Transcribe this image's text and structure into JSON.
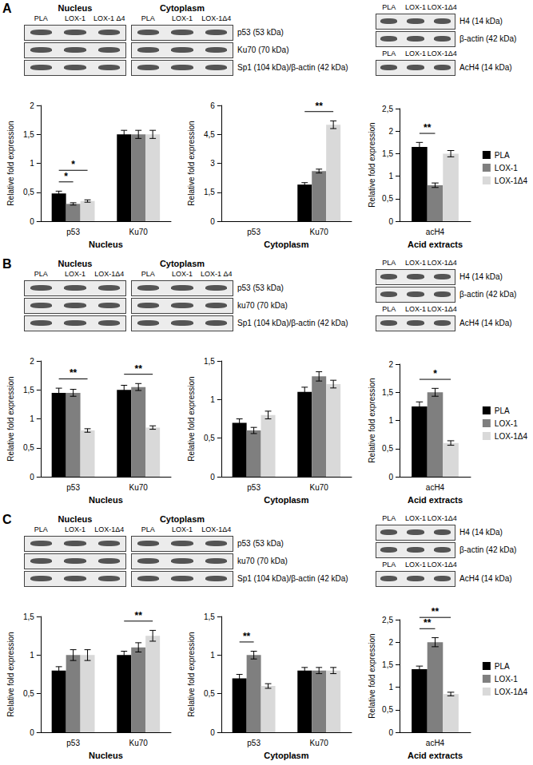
{
  "panels": [
    {
      "label": "A",
      "blots": [
        {
          "sections": [
            {
              "title": "Nucleus",
              "lanes": [
                "PLA",
                "LOX-1",
                "LOX-1 Δ4"
              ]
            },
            {
              "title": "Cytoplasm",
              "lanes": [
                "PLA",
                "LOX-1",
                "LOX-1Δ4"
              ]
            }
          ],
          "rows": [
            "p53 (53 kDa)",
            "Ku70 (70 kDa)",
            "Sp1 (104 kDa)/β-actin (42 kDa)"
          ]
        },
        {
          "sections": [
            {
              "lanes": [
                "PLA",
                "LOX-1",
                "LOX-1Δ4"
              ]
            }
          ],
          "rows": [
            "H4 (14 kDa)",
            "β-actin (42 kDa)"
          ]
        },
        {
          "sections": [
            {
              "lanes": [
                "PLA",
                "LOX-1",
                "LOX-1Δ4"
              ]
            }
          ],
          "rows": [
            "AcH4 (14 kDa)"
          ]
        }
      ]
    },
    {
      "label": "B",
      "blots": [
        {
          "sections": [
            {
              "title": "Nucleus",
              "lanes": [
                "PLA",
                "LOX-1",
                "LOX-1Δ4"
              ]
            },
            {
              "title": "Cytoplasm",
              "lanes": [
                "PLA",
                "LOX-1",
                "LOX-1 Δ4"
              ]
            }
          ],
          "rows": [
            "p53 (53 kDa)",
            "ku70 (70 kDa)",
            "Sp1 (104 kDa)/β-actin (42 kDa)"
          ]
        },
        {
          "sections": [
            {
              "lanes": [
                "PLA",
                "LOX-1",
                "LOX-1Δ4"
              ]
            }
          ],
          "rows": [
            "H4 (14 kDa)",
            "β-actin (42 kDa)"
          ]
        },
        {
          "sections": [
            {
              "lanes": [
                "PLA",
                "LOX-1",
                "LOX-1Δ4"
              ]
            }
          ],
          "rows": [
            "AcH4 (14 kDa)"
          ]
        }
      ]
    },
    {
      "label": "C",
      "blots": [
        {
          "sections": [
            {
              "title": "Nucleus",
              "lanes": [
                "PLA",
                "LOX-1",
                "LOX-1Δ4"
              ]
            },
            {
              "title": "Cytoplasm",
              "lanes": [
                "PLA",
                "LOX-1",
                "LOX-1Δ4"
              ]
            }
          ],
          "rows": [
            "p53 (53 kDa)",
            "ku70 (70 kDa)",
            "Sp1 (104 kDa)/β-actin (42 kDa)"
          ]
        },
        {
          "sections": [
            {
              "lanes": [
                "PLA",
                "LOX-1",
                "LOX-1Δ4"
              ]
            }
          ],
          "rows": [
            "H4 (14 kDa)",
            "β-actin (42 kDa)"
          ]
        },
        {
          "sections": [
            {
              "lanes": [
                "PLA",
                "LOX-1",
                "LOX-1Δ4"
              ]
            }
          ],
          "rows": [
            "AcH4 (14 kDa)"
          ]
        }
      ]
    }
  ],
  "chart_data": [
    {
      "panel": "A",
      "type": "bar",
      "grid": false,
      "x_label": "Nucleus",
      "y_label": "Relative fold expression",
      "categories": [
        "p53",
        "Ku70"
      ],
      "series": [
        {
          "name": "PLA",
          "color": "#000000",
          "values": [
            0.48,
            1.5
          ],
          "errors": [
            0.04,
            0.07
          ]
        },
        {
          "name": "LOX-1",
          "color": "#7f7f7f",
          "values": [
            0.3,
            1.5
          ],
          "errors": [
            0.02,
            0.07
          ]
        },
        {
          "name": "LOX-1Δ4",
          "color": "#d9d9d9",
          "values": [
            0.35,
            1.5
          ],
          "errors": [
            0.02,
            0.07
          ]
        }
      ],
      "ylim": [
        0,
        2
      ],
      "yticks": [
        0,
        {
          "value": 0.5,
          "label": "0,5"
        },
        1,
        {
          "value": 1.5,
          "label": "1,5"
        },
        2
      ],
      "annotations": [
        {
          "text": "*",
          "category": "p53",
          "series": [
            "PLA",
            "LOX-1"
          ]
        },
        {
          "text": "*",
          "category": "p53",
          "series": [
            "PLA",
            "LOX-1Δ4"
          ]
        }
      ]
    },
    {
      "panel": "A",
      "type": "bar",
      "grid": false,
      "x_label": "Cytoplasm",
      "y_label": "Relative fold expression",
      "categories": [
        "p53",
        "Ku70"
      ],
      "series": [
        {
          "name": "PLA",
          "color": "#000000",
          "values": [
            0,
            1.9
          ],
          "errors": [
            0,
            0.1
          ]
        },
        {
          "name": "LOX-1",
          "color": "#7f7f7f",
          "values": [
            0,
            2.6
          ],
          "errors": [
            0,
            0.1
          ]
        },
        {
          "name": "LOX-1Δ4",
          "color": "#d9d9d9",
          "values": [
            0,
            5.0
          ],
          "errors": [
            0,
            0.2
          ]
        }
      ],
      "ylim": [
        0,
        6
      ],
      "yticks": [
        0,
        {
          "value": 1.5,
          "label": "1,5"
        },
        3,
        {
          "value": 4.5,
          "label": "4,5"
        },
        6
      ],
      "annotations": [
        {
          "text": "**",
          "category": "Ku70",
          "series": [
            "PLA",
            "LOX-1Δ4"
          ]
        }
      ]
    },
    {
      "panel": "A",
      "type": "bar",
      "grid": false,
      "x_label": "Acid extracts",
      "y_label": "Relative fold expression",
      "legend": "right",
      "categories": [
        "acH4"
      ],
      "series": [
        {
          "name": "PLA",
          "color": "#000000",
          "values": [
            1.65
          ],
          "errors": [
            0.1
          ]
        },
        {
          "name": "LOX-1",
          "color": "#7f7f7f",
          "values": [
            0.8
          ],
          "errors": [
            0.05
          ]
        },
        {
          "name": "LOX-1Δ4",
          "color": "#d9d9d9",
          "values": [
            1.5
          ],
          "errors": [
            0.07
          ]
        }
      ],
      "ylim": [
        0,
        2.5
      ],
      "yticks": [
        0,
        {
          "value": 0.5,
          "label": "0,5"
        },
        1,
        {
          "value": 1.5,
          "label": "1,5"
        },
        2,
        {
          "value": 2.5,
          "label": "2,5"
        }
      ],
      "annotations": [
        {
          "text": "**",
          "category": "acH4",
          "series": [
            "PLA",
            "LOX-1"
          ]
        }
      ]
    },
    {
      "panel": "B",
      "type": "bar",
      "grid": false,
      "x_label": "Nucleus",
      "y_label": "Relative fold expression",
      "categories": [
        "p53",
        "Ku70"
      ],
      "series": [
        {
          "name": "PLA",
          "color": "#000000",
          "values": [
            1.45,
            1.5
          ],
          "errors": [
            0.08,
            0.08
          ]
        },
        {
          "name": "LOX-1",
          "color": "#7f7f7f",
          "values": [
            1.45,
            1.55
          ],
          "errors": [
            0.06,
            0.06
          ]
        },
        {
          "name": "LOX-1Δ4",
          "color": "#d9d9d9",
          "values": [
            0.8,
            0.85
          ],
          "errors": [
            0.03,
            0.03
          ]
        }
      ],
      "ylim": [
        0,
        2
      ],
      "yticks": [
        0,
        {
          "value": 0.5,
          "label": "0,5"
        },
        1,
        {
          "value": 1.5,
          "label": "1,5"
        },
        2
      ],
      "annotations": [
        {
          "text": "**",
          "category": "p53",
          "series": [
            "PLA",
            "LOX-1Δ4"
          ]
        },
        {
          "text": "**",
          "category": "Ku70",
          "series": [
            "PLA",
            "LOX-1Δ4"
          ]
        }
      ]
    },
    {
      "panel": "B",
      "type": "bar",
      "grid": false,
      "x_label": "Cytoplasm",
      "y_label": "Relative fold expression",
      "categories": [
        "p53",
        "Ku70"
      ],
      "series": [
        {
          "name": "PLA",
          "color": "#000000",
          "values": [
            0.7,
            1.1
          ],
          "errors": [
            0.05,
            0.06
          ]
        },
        {
          "name": "LOX-1",
          "color": "#7f7f7f",
          "values": [
            0.6,
            1.3
          ],
          "errors": [
            0.04,
            0.06
          ]
        },
        {
          "name": "LOX-1Δ4",
          "color": "#d9d9d9",
          "values": [
            0.8,
            1.2
          ],
          "errors": [
            0.05,
            0.05
          ]
        }
      ],
      "ylim": [
        0,
        1.5
      ],
      "yticks": [
        0,
        {
          "value": 0.5,
          "label": "0,5"
        },
        1,
        {
          "value": 1.5,
          "label": "1,5"
        }
      ],
      "annotations": []
    },
    {
      "panel": "B",
      "type": "bar",
      "grid": false,
      "x_label": "Acid extracts",
      "y_label": "Relative fold expression",
      "legend": "right",
      "categories": [
        "acH4"
      ],
      "series": [
        {
          "name": "PLA",
          "color": "#000000",
          "values": [
            1.25
          ],
          "errors": [
            0.08
          ]
        },
        {
          "name": "LOX-1",
          "color": "#7f7f7f",
          "values": [
            1.5
          ],
          "errors": [
            0.07
          ]
        },
        {
          "name": "LOX-1Δ4",
          "color": "#d9d9d9",
          "values": [
            0.6
          ],
          "errors": [
            0.04
          ]
        }
      ],
      "ylim": [
        0,
        2
      ],
      "yticks": [
        0,
        {
          "value": 0.5,
          "label": "0,5"
        },
        1,
        {
          "value": 1.5,
          "label": "1,5"
        },
        2
      ],
      "annotations": [
        {
          "text": "*",
          "category": "acH4",
          "series": [
            "PLA",
            "LOX-1Δ4"
          ]
        }
      ]
    },
    {
      "panel": "C",
      "type": "bar",
      "grid": false,
      "x_label": "Nucleus",
      "y_label": "Relative fold expression",
      "categories": [
        "p53",
        "Ku70"
      ],
      "series": [
        {
          "name": "PLA",
          "color": "#000000",
          "values": [
            0.8,
            1.0
          ],
          "errors": [
            0.05,
            0.05
          ]
        },
        {
          "name": "LOX-1",
          "color": "#7f7f7f",
          "values": [
            1.0,
            1.1
          ],
          "errors": [
            0.07,
            0.06
          ]
        },
        {
          "name": "LOX-1Δ4",
          "color": "#d9d9d9",
          "values": [
            1.0,
            1.25
          ],
          "errors": [
            0.07,
            0.07
          ]
        }
      ],
      "ylim": [
        0,
        1.5
      ],
      "yticks": [
        0,
        {
          "value": 0.5,
          "label": "0,5"
        },
        1,
        {
          "value": 1.5,
          "label": "1,5"
        }
      ],
      "annotations": [
        {
          "text": "**",
          "category": "Ku70",
          "series": [
            "PLA",
            "LOX-1Δ4"
          ]
        }
      ]
    },
    {
      "panel": "C",
      "type": "bar",
      "grid": false,
      "x_label": "Cytoplasm",
      "y_label": "Relative fold expression",
      "categories": [
        "p53",
        "Ku70"
      ],
      "series": [
        {
          "name": "PLA",
          "color": "#000000",
          "values": [
            0.7,
            0.8
          ],
          "errors": [
            0.05,
            0.04
          ]
        },
        {
          "name": "LOX-1",
          "color": "#7f7f7f",
          "values": [
            1.0,
            0.8
          ],
          "errors": [
            0.05,
            0.04
          ]
        },
        {
          "name": "LOX-1Δ4",
          "color": "#d9d9d9",
          "values": [
            0.6,
            0.8
          ],
          "errors": [
            0.03,
            0.04
          ]
        }
      ],
      "ylim": [
        0,
        1.5
      ],
      "yticks": [
        0,
        {
          "value": 0.5,
          "label": "0,5"
        },
        1,
        {
          "value": 1.5,
          "label": "1,5"
        }
      ],
      "annotations": [
        {
          "text": "**",
          "category": "p53",
          "series": [
            "PLA",
            "LOX-1"
          ]
        }
      ]
    },
    {
      "panel": "C",
      "type": "bar",
      "grid": false,
      "x_label": "Acid extracts",
      "y_label": "Relative fold expression",
      "legend": "right",
      "categories": [
        "acH4"
      ],
      "series": [
        {
          "name": "PLA",
          "color": "#000000",
          "values": [
            1.4
          ],
          "errors": [
            0.07
          ]
        },
        {
          "name": "LOX-1",
          "color": "#7f7f7f",
          "values": [
            2.0
          ],
          "errors": [
            0.1
          ]
        },
        {
          "name": "LOX-1Δ4",
          "color": "#d9d9d9",
          "values": [
            0.85
          ],
          "errors": [
            0.04
          ]
        }
      ],
      "ylim": [
        0,
        2.5
      ],
      "yticks": [
        0,
        {
          "value": 0.5,
          "label": "0,5"
        },
        1,
        {
          "value": 1.5,
          "label": "1,5"
        },
        2,
        {
          "value": 2.5,
          "label": "2,5"
        }
      ],
      "annotations": [
        {
          "text": "**",
          "category": "acH4",
          "series": [
            "PLA",
            "LOX-1"
          ]
        },
        {
          "text": "**",
          "category": "acH4",
          "series": [
            "PLA",
            "LOX-1Δ4"
          ]
        }
      ]
    }
  ]
}
